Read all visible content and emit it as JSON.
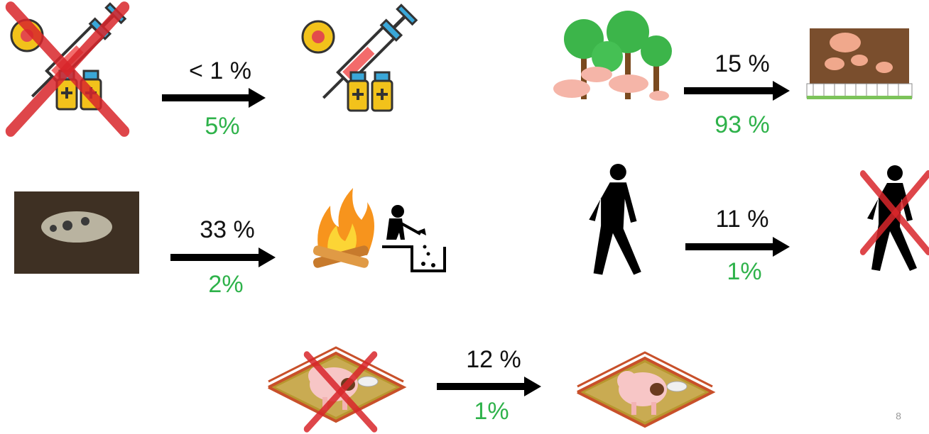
{
  "transitions": [
    {
      "top_label": "< 1 %",
      "bottom_label": "5%"
    },
    {
      "top_label": "15 %",
      "bottom_label": "93 %"
    },
    {
      "top_label": "33 %",
      "bottom_label": "2%"
    },
    {
      "top_label": "11 %",
      "bottom_label": "1%"
    },
    {
      "top_label": "12 %",
      "bottom_label": "1%"
    }
  ],
  "page_number": "8"
}
